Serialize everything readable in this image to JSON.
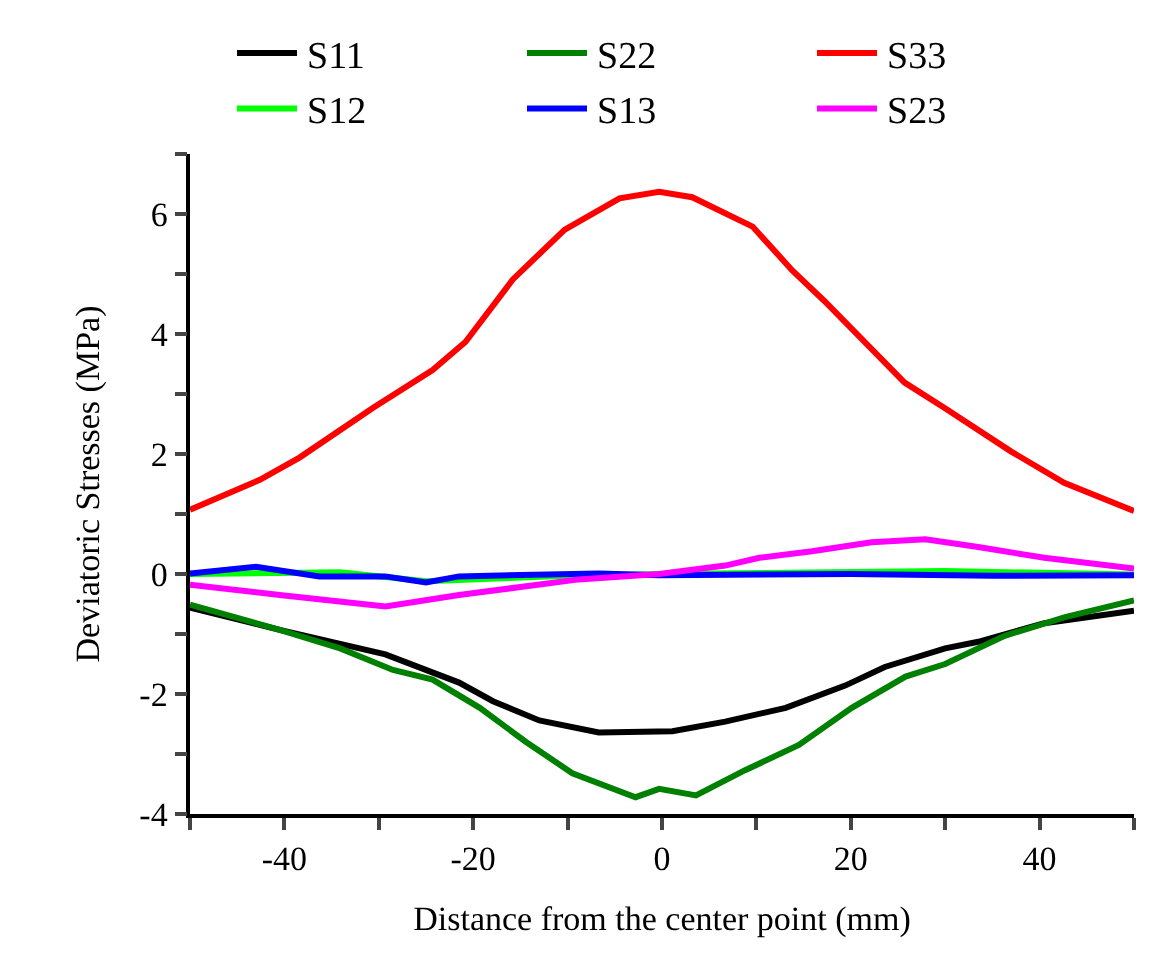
{
  "chart_data": {
    "type": "line",
    "xlabel": "Distance from the center point (mm)",
    "ylabel": "Deviatoric Stresses (MPa)",
    "xlim": [
      -50,
      50
    ],
    "xticks": [
      {
        "value": -50,
        "label": null
      },
      -40,
      {
        "value": -30,
        "label": null
      },
      -20,
      {
        "value": -10,
        "label": null
      },
      0,
      {
        "value": 10,
        "label": null
      },
      20,
      {
        "value": 30,
        "label": null
      },
      40,
      {
        "value": 50,
        "label": null
      }
    ],
    "ylim": [
      -4,
      7
    ],
    "yticks": [
      -4,
      {
        "value": -3,
        "label": null
      },
      -2,
      {
        "value": -1,
        "label": null
      },
      0,
      {
        "value": 1,
        "label": null
      },
      2,
      {
        "value": 3,
        "label": null
      },
      4,
      {
        "value": 5,
        "label": null
      },
      6,
      {
        "value": 7,
        "label": null
      }
    ],
    "legend": "top",
    "marker": "none",
    "line_style": "solid",
    "series": [
      {
        "name": "S11",
        "color": "#000000",
        "x": [
          -50,
          -40.5,
          -29.3,
          -21.5,
          -17.9,
          -13,
          -6.7,
          1.1,
          6.7,
          13.1,
          19.4,
          23.6,
          30,
          33.5,
          40.5,
          50
        ],
        "values": [
          -0.56,
          -0.93,
          -1.34,
          -1.81,
          -2.12,
          -2.44,
          -2.64,
          -2.62,
          -2.46,
          -2.23,
          -1.86,
          -1.55,
          -1.24,
          -1.13,
          -0.82,
          -0.61
        ]
      },
      {
        "name": "S22",
        "color": "#008000",
        "x": [
          -50,
          -40.5,
          -34.1,
          -28.5,
          -24.3,
          -19.3,
          -14.4,
          -9.5,
          -2.8,
          -0.3,
          3.6,
          8.8,
          14.5,
          20.1,
          25.8,
          30,
          36.3,
          42.7,
          50
        ],
        "values": [
          -0.51,
          -0.93,
          -1.24,
          -1.6,
          -1.76,
          -2.23,
          -2.8,
          -3.32,
          -3.72,
          -3.58,
          -3.69,
          -3.27,
          -2.85,
          -2.23,
          -1.71,
          -1.5,
          -1.03,
          -0.72,
          -0.44
        ]
      },
      {
        "name": "S33",
        "color": "#ff0000",
        "x": [
          -50,
          -42.6,
          -38.4,
          -30.6,
          -24.3,
          -20.8,
          -15.8,
          -10.3,
          -4.5,
          -0.3,
          3.2,
          9.6,
          13.8,
          17.2,
          25.7,
          29.9,
          37,
          42.6,
          50
        ],
        "values": [
          1.07,
          1.57,
          1.94,
          2.77,
          3.4,
          3.87,
          4.91,
          5.74,
          6.26,
          6.37,
          6.28,
          5.79,
          5.06,
          4.55,
          3.19,
          2.77,
          2.04,
          1.52,
          1.05
        ]
      },
      {
        "name": "S12",
        "color": "#00ff00",
        "x": [
          -50,
          -34.1,
          -25,
          -10,
          0,
          30,
          50
        ],
        "values": [
          0,
          0.03,
          -0.12,
          -0.03,
          0,
          0.05,
          -0.01
        ]
      },
      {
        "name": "S13",
        "color": "#0000ff",
        "x": [
          -50,
          -43,
          -36.3,
          -29.3,
          -25,
          -21.5,
          -6.7,
          -0.3,
          20,
          35,
          50
        ],
        "values": [
          0.01,
          0.12,
          -0.04,
          -0.04,
          -0.14,
          -0.04,
          0.01,
          -0.02,
          0,
          -0.03,
          -0.02
        ]
      },
      {
        "name": "S23",
        "color": "#ff00ff",
        "x": [
          -50,
          -40.5,
          -29.3,
          -21.5,
          -8.8,
          -0.3,
          6.7,
          10.3,
          15.9,
          22.2,
          27.9,
          33.5,
          40.5,
          50
        ],
        "values": [
          -0.18,
          -0.35,
          -0.54,
          -0.35,
          -0.09,
          0,
          0.14,
          0.27,
          0.38,
          0.53,
          0.58,
          0.45,
          0.27,
          0.09
        ]
      }
    ]
  }
}
